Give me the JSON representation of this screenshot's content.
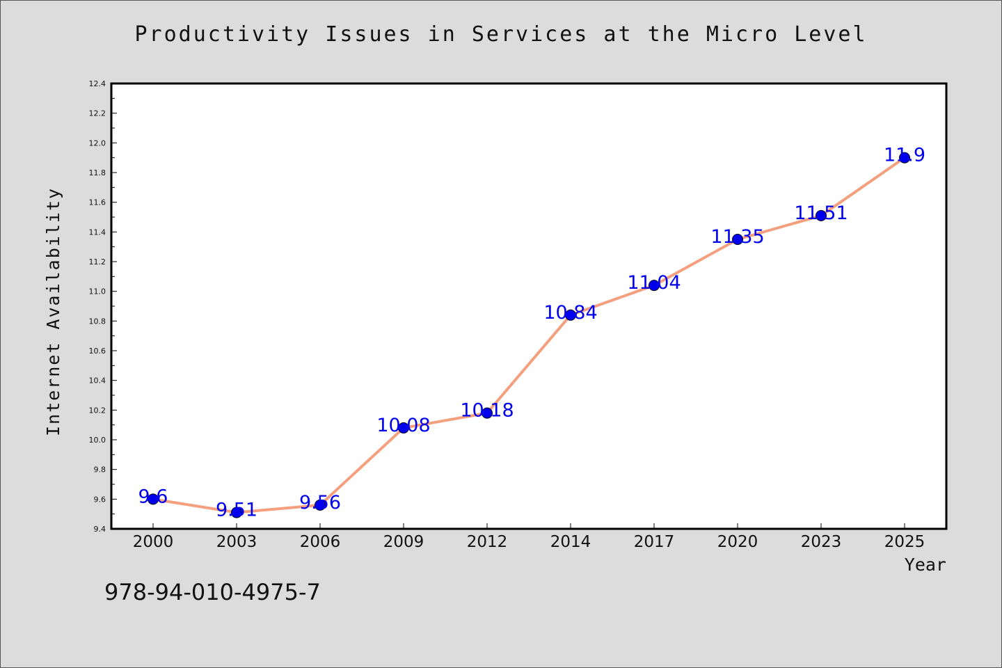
{
  "chart_data": {
    "type": "line",
    "title": "Productivity Issues in Services at the Micro Level",
    "xlabel": "Year",
    "ylabel": "Internet Availability",
    "categories": [
      "2000",
      "2003",
      "2006",
      "2009",
      "2012",
      "2014",
      "2017",
      "2020",
      "2023",
      "2025"
    ],
    "series": [
      {
        "values": [
          9.6,
          9.51,
          9.56,
          10.08,
          10.18,
          10.84,
          11.04,
          11.35,
          11.51,
          11.9
        ]
      }
    ],
    "data_labels": [
      "9.6",
      "9.51",
      "9.56",
      "10.08",
      "10.18",
      "10.84",
      "11.04",
      "11.35",
      "11.51",
      "11.9"
    ],
    "ylim": [
      9.4,
      12.4
    ],
    "yticks": [
      "9.4",
      "9.6",
      "9.8",
      "10.0",
      "10.2",
      "10.4",
      "10.6",
      "10.8",
      "11.0",
      "11.2",
      "11.4",
      "11.6",
      "11.8",
      "12.0",
      "12.2",
      "12.4"
    ],
    "grid": false,
    "colors": {
      "line": "#f4a07e",
      "marker": "#0000ee",
      "label": "#0000ee"
    }
  },
  "footnote": "978-94-010-4975-7"
}
